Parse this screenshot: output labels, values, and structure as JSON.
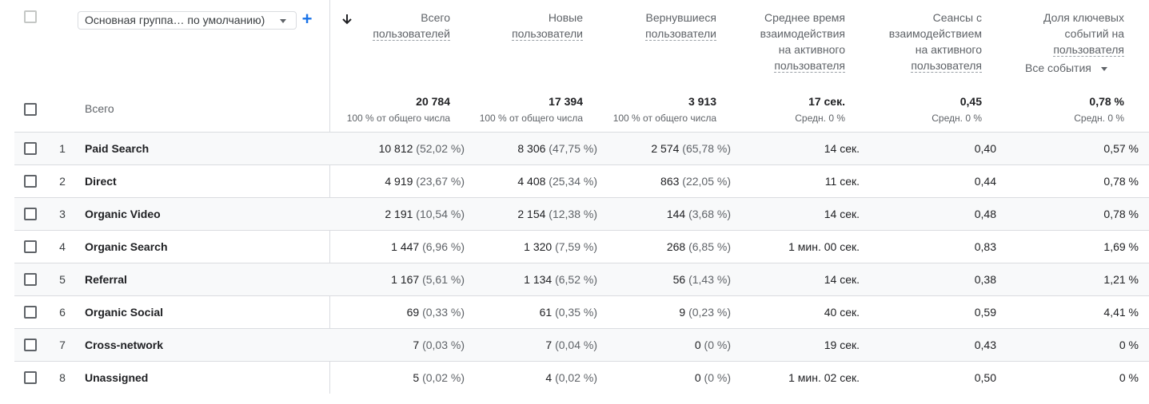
{
  "header": {
    "dimension_select": "Основная группа… по умолчанию)",
    "add_button": "+",
    "columns": [
      {
        "lines": [
          "Всего",
          "пользователей"
        ]
      },
      {
        "lines": [
          "Новые",
          "пользователи"
        ]
      },
      {
        "lines": [
          "Вернувшиеся",
          "пользователи"
        ]
      },
      {
        "lines": [
          "Среднее время",
          "взаимодействия",
          "на активного",
          "пользователя"
        ]
      },
      {
        "lines": [
          "Сеансы с",
          "взаимодействием",
          "на активного",
          "пользователя"
        ]
      },
      {
        "lines": [
          "Доля ключевых",
          "событий на",
          "пользователя"
        ]
      }
    ],
    "events_select": "Все события"
  },
  "totals": {
    "label": "Всего",
    "values": [
      {
        "value": "20 784",
        "sub": "100 % от общего числа"
      },
      {
        "value": "17 394",
        "sub": "100 % от общего числа"
      },
      {
        "value": "3 913",
        "sub": "100 % от общего числа"
      },
      {
        "value": "17 сек.",
        "sub": "Средн. 0 %"
      },
      {
        "value": "0,45",
        "sub": "Средн. 0 %"
      },
      {
        "value": "0,78 %",
        "sub": "Средн. 0 %"
      }
    ]
  },
  "rows": [
    {
      "index": "1",
      "name": "Paid Search",
      "cols": [
        [
          "10 812",
          "(52,02 %)"
        ],
        [
          "8 306",
          "(47,75 %)"
        ],
        [
          "2 574",
          "(65,78 %)"
        ],
        [
          "14 сек.",
          ""
        ],
        [
          "0,40",
          ""
        ],
        [
          "0,57 %",
          ""
        ]
      ]
    },
    {
      "index": "2",
      "name": "Direct",
      "cols": [
        [
          "4 919",
          "(23,67 %)"
        ],
        [
          "4 408",
          "(25,34 %)"
        ],
        [
          "863",
          "(22,05 %)"
        ],
        [
          "11 сек.",
          ""
        ],
        [
          "0,44",
          ""
        ],
        [
          "0,78 %",
          ""
        ]
      ]
    },
    {
      "index": "3",
      "name": "Organic Video",
      "cols": [
        [
          "2 191",
          "(10,54 %)"
        ],
        [
          "2 154",
          "(12,38 %)"
        ],
        [
          "144",
          "(3,68 %)"
        ],
        [
          "14 сек.",
          ""
        ],
        [
          "0,48",
          ""
        ],
        [
          "0,78 %",
          ""
        ]
      ]
    },
    {
      "index": "4",
      "name": "Organic Search",
      "cols": [
        [
          "1 447",
          "(6,96 %)"
        ],
        [
          "1 320",
          "(7,59 %)"
        ],
        [
          "268",
          "(6,85 %)"
        ],
        [
          "1 мин. 00 сек.",
          ""
        ],
        [
          "0,83",
          ""
        ],
        [
          "1,69 %",
          ""
        ]
      ]
    },
    {
      "index": "5",
      "name": "Referral",
      "cols": [
        [
          "1 167",
          "(5,61 %)"
        ],
        [
          "1 134",
          "(6,52 %)"
        ],
        [
          "56",
          "(1,43 %)"
        ],
        [
          "14 сек.",
          ""
        ],
        [
          "0,38",
          ""
        ],
        [
          "1,21 %",
          ""
        ]
      ]
    },
    {
      "index": "6",
      "name": "Organic Social",
      "cols": [
        [
          "69",
          "(0,33 %)"
        ],
        [
          "61",
          "(0,35 %)"
        ],
        [
          "9",
          "(0,23 %)"
        ],
        [
          "40 сек.",
          ""
        ],
        [
          "0,59",
          ""
        ],
        [
          "4,41 %",
          ""
        ]
      ]
    },
    {
      "index": "7",
      "name": "Cross-network",
      "cols": [
        [
          "7",
          "(0,03 %)"
        ],
        [
          "7",
          "(0,04 %)"
        ],
        [
          "0",
          "(0 %)"
        ],
        [
          "19 сек.",
          ""
        ],
        [
          "0,43",
          ""
        ],
        [
          "0 %",
          ""
        ]
      ]
    },
    {
      "index": "8",
      "name": "Unassigned",
      "cols": [
        [
          "5",
          "(0,02 %)"
        ],
        [
          "4",
          "(0,02 %)"
        ],
        [
          "0",
          "(0 %)"
        ],
        [
          "1 мин. 02 сек.",
          ""
        ],
        [
          "0,50",
          ""
        ],
        [
          "0 %",
          ""
        ]
      ]
    }
  ],
  "colors": {
    "accent": "#1a73e8",
    "border": "#dadce0",
    "row_shade": "#f8f9fa",
    "text": "#202124",
    "muted": "#5f6368"
  }
}
